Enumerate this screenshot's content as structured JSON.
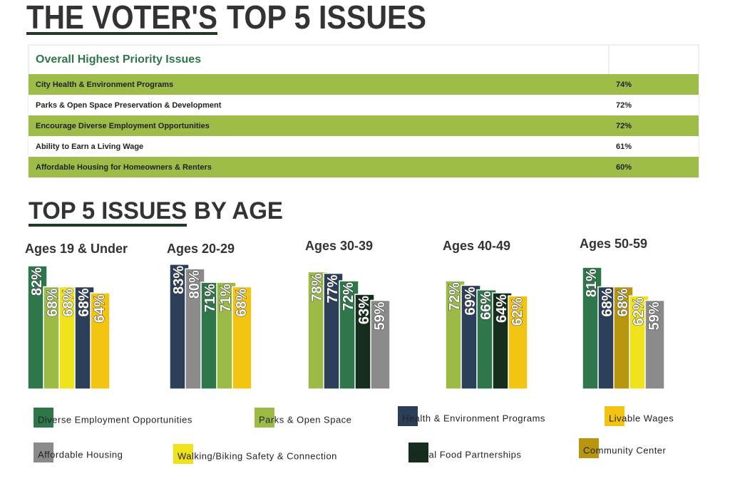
{
  "title": [
    "THE VOTER'S",
    "TOP 5 ISSUES"
  ],
  "table": {
    "header": "Overall Highest Priority Issues",
    "rows": [
      [
        "City Health & Environment Programs",
        "74%"
      ],
      [
        "Parks & Open Space Preservation & Development",
        "72%"
      ],
      [
        "Encourage Diverse Employment Opportunities",
        "72%"
      ],
      [
        "Ability to Earn a Living Wage",
        "61%"
      ],
      [
        "Affordable Housing for Homeowners & Renters",
        "60%"
      ]
    ]
  },
  "section_title": [
    "TOP 5 ISSUES",
    "BY AGE"
  ],
  "legend": [
    {
      "name": "Diverse Employment Opportunities",
      "color": "#2e774a"
    },
    {
      "name": "Parks & Open Space",
      "color": "#9cbb46"
    },
    {
      "name": "Health & Environment Programs",
      "color": "#2c3f58"
    },
    {
      "name": "Livable Wages",
      "color": "#f2c311"
    },
    {
      "name": "Affordable Housing",
      "color": "#8a8a8a"
    },
    {
      "name": "Walking/Biking Safety & Connection",
      "color": "#f0e21a"
    },
    {
      "name": "Local Food Partnerships",
      "color": "#142d1d"
    },
    {
      "name": "Community Center",
      "color": "#b8950f"
    }
  ],
  "chart_data": [
    {
      "type": "bar",
      "title": "Ages 19 & Under",
      "values": [
        82,
        68,
        68,
        68,
        64
      ],
      "value_labels": [
        "82%",
        "68%",
        "68%",
        "68%",
        "64%"
      ],
      "colors": [
        "#2e774a",
        "#9cbb46",
        "#f0e21a",
        "#2c3f58",
        "#f2c311"
      ]
    },
    {
      "type": "bar",
      "title": "Ages 20-29",
      "values": [
        83,
        80,
        71,
        71,
        68
      ],
      "value_labels": [
        "83%",
        "80%",
        "71%",
        "71%",
        "68%"
      ],
      "colors": [
        "#2c3f58",
        "#8a8a8a",
        "#2e774a",
        "#9cbb46",
        "#f2c311"
      ]
    },
    {
      "type": "bar",
      "title": "Ages 30-39",
      "values": [
        78,
        77,
        72,
        63,
        59
      ],
      "value_labels": [
        "78%",
        "77%",
        "72%",
        "63%",
        "59%"
      ],
      "colors": [
        "#9cbb46",
        "#2c3f58",
        "#2e774a",
        "#142d1d",
        "#8a8a8a"
      ]
    },
    {
      "type": "bar",
      "title": "Ages 40-49",
      "values": [
        72,
        69,
        66,
        64,
        62
      ],
      "value_labels": [
        "72%",
        "69%",
        "66%",
        "64%",
        "62%"
      ],
      "colors": [
        "#9cbb46",
        "#2c3f58",
        "#2e774a",
        "#142d1d",
        "#f2c311"
      ]
    },
    {
      "type": "bar",
      "title": "Ages 50-59",
      "values": [
        81,
        68,
        68,
        62,
        59
      ],
      "value_labels": [
        "81%",
        "68%",
        "68%",
        "62%",
        "59%"
      ],
      "colors": [
        "#2e774a",
        "#2c3f58",
        "#b8950f",
        "#f0e21a",
        "#8a8a8a"
      ]
    }
  ]
}
